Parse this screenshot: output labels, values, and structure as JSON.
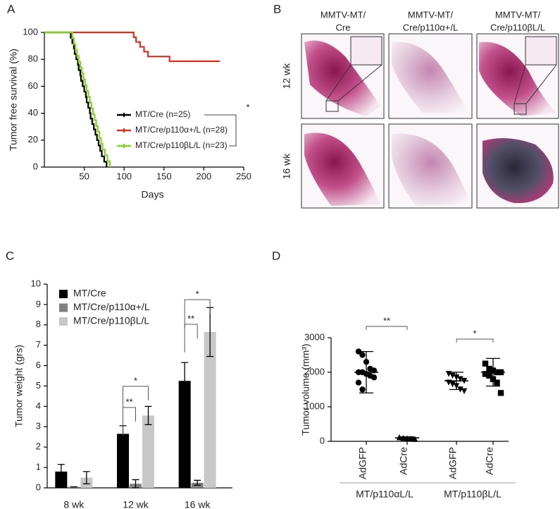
{
  "panel_labels": [
    "A",
    "B",
    "C",
    "D"
  ],
  "images": {
    "columns": [
      [
        "MMTV-MT/",
        "Cre"
      ],
      [
        "MMTV-MT/",
        "Cre/p110α+/L"
      ],
      [
        "MMTV-MT/",
        "Cre/p110βL/L"
      ]
    ],
    "rows": [
      "12 wk",
      "16 wk"
    ]
  },
  "chart_data": [
    {
      "type": "step",
      "x_label": "Days",
      "y_label": "Tumor free survival (%)",
      "xlim": [
        0,
        250
      ],
      "xticks": [
        50,
        100,
        150,
        200,
        250
      ],
      "ylim": [
        0,
        100
      ],
      "yticks": [
        0,
        20,
        40,
        60,
        80,
        100
      ],
      "series": [
        {
          "name": "MT/Cre (n=25)",
          "color": "#000000",
          "x": [
            0,
            33,
            35,
            37,
            38,
            40,
            42,
            43,
            45,
            46,
            48,
            50,
            52,
            53,
            55,
            57,
            58,
            60,
            62,
            64,
            66,
            68,
            70,
            72,
            75,
            78
          ],
          "values": [
            100,
            96,
            92,
            88,
            84,
            80,
            76,
            72,
            68,
            64,
            60,
            56,
            52,
            48,
            44,
            40,
            36,
            32,
            28,
            24,
            20,
            16,
            12,
            8,
            4,
            0
          ]
        },
        {
          "name": "MT/Cre/p110α+/L (n=28)",
          "color": "#d7301f",
          "x": [
            0,
            112,
            115,
            120,
            125,
            130,
            157,
            220
          ],
          "values": [
            100,
            96.4,
            92.9,
            89.3,
            85.7,
            82.1,
            78.6,
            78.6
          ]
        },
        {
          "name": "MT/Cre/p110βL/L (n=23)",
          "color": "#7ed321",
          "x": [
            0,
            35,
            37,
            39,
            41,
            43,
            45,
            47,
            49,
            51,
            53,
            55,
            57,
            59,
            61,
            63,
            65,
            67,
            69,
            71,
            73,
            76,
            79,
            82
          ],
          "values": [
            100,
            95.7,
            91.3,
            87,
            82.6,
            78.3,
            73.9,
            69.6,
            65.2,
            60.9,
            56.5,
            52.2,
            47.8,
            43.5,
            39.1,
            34.8,
            30.4,
            26.1,
            21.7,
            17.4,
            13,
            8.7,
            4.3,
            0
          ]
        }
      ],
      "annotations": [
        "*"
      ]
    },
    {
      "type": "bar",
      "y_label": "Tumor weight (grs)",
      "categories": [
        "8 wk",
        "12 wk",
        "16 wk"
      ],
      "ylim": [
        0,
        10
      ],
      "yticks": [
        0,
        1,
        2,
        3,
        4,
        5,
        6,
        7,
        8,
        9,
        10
      ],
      "series": [
        {
          "name": "MT/Cre",
          "color": "#000000",
          "values": [
            0.8,
            2.65,
            5.25
          ],
          "errors": [
            0.35,
            0.4,
            0.9
          ]
        },
        {
          "name": "MT/Cre/p110α+/L",
          "color": "#808080",
          "values": [
            0.05,
            0.2,
            0.25
          ],
          "errors": [
            0,
            0.2,
            0.12
          ]
        },
        {
          "name": "MT/Cre/p110βL/L",
          "color": "#c8c8c8",
          "values": [
            0.5,
            3.55,
            7.65
          ],
          "errors": [
            0.3,
            0.45,
            1.2
          ]
        }
      ],
      "annotations": [
        "**",
        "*",
        "**",
        "*"
      ]
    },
    {
      "type": "dotplot",
      "y_label": "Tumor volume (mm³)",
      "categories": [
        "AdGFP",
        "AdCre",
        "AdGFP",
        "AdCre"
      ],
      "groups": [
        "MT/p110αL/L",
        "MT/p110βL/L"
      ],
      "ylim": [
        0,
        3000
      ],
      "yticks": [
        0,
        1000,
        2000,
        3000
      ],
      "color": "#000000",
      "markers": [
        "circle",
        "triangle",
        "triangle-down",
        "square"
      ],
      "points": [
        [
          2600,
          2500,
          2300,
          2100,
          2050,
          2000,
          2000,
          1950,
          1900,
          1850,
          1700,
          1500
        ],
        [
          120,
          100,
          90,
          80,
          70
        ],
        [
          1950,
          1900,
          1850,
          1800,
          1750,
          1700,
          1650,
          1600,
          1500,
          1450
        ],
        [
          2250,
          2100,
          2050,
          2000,
          2000,
          1950,
          1900,
          1800,
          1700,
          1400
        ]
      ],
      "means": [
        2000,
        100,
        1750,
        2000
      ],
      "errors": [
        600,
        30,
        250,
        400
      ],
      "annotations": [
        "**",
        "*"
      ]
    }
  ]
}
